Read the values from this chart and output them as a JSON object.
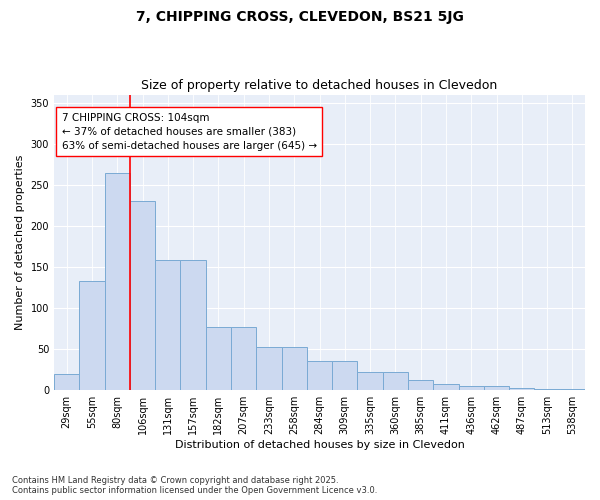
{
  "title": "7, CHIPPING CROSS, CLEVEDON, BS21 5JG",
  "subtitle": "Size of property relative to detached houses in Clevedon",
  "xlabel": "Distribution of detached houses by size in Clevedon",
  "ylabel": "Number of detached properties",
  "categories": [
    "29sqm",
    "55sqm",
    "80sqm",
    "106sqm",
    "131sqm",
    "157sqm",
    "182sqm",
    "207sqm",
    "233sqm",
    "258sqm",
    "284sqm",
    "309sqm",
    "335sqm",
    "360sqm",
    "385sqm",
    "411sqm",
    "436sqm",
    "462sqm",
    "487sqm",
    "513sqm",
    "538sqm"
  ],
  "bar_values": [
    20,
    133,
    265,
    230,
    158,
    158,
    77,
    77,
    53,
    53,
    35,
    35,
    22,
    22,
    13,
    7,
    5,
    5,
    3,
    2,
    1
  ],
  "bar_color": "#ccd9f0",
  "bar_edge_color": "#7aaad4",
  "vline_color": "red",
  "vline_pos": 3.0,
  "annotation_text": "7 CHIPPING CROSS: 104sqm\n← 37% of detached houses are smaller (383)\n63% of semi-detached houses are larger (645) →",
  "annotation_box_color": "white",
  "annotation_box_edge": "red",
  "ylim": [
    0,
    360
  ],
  "yticks": [
    0,
    50,
    100,
    150,
    200,
    250,
    300,
    350
  ],
  "footer": "Contains HM Land Registry data © Crown copyright and database right 2025.\nContains public sector information licensed under the Open Government Licence v3.0.",
  "bg_color": "#e8eef8",
  "title_fontsize": 10,
  "subtitle_fontsize": 9,
  "axis_label_fontsize": 8,
  "tick_fontsize": 7,
  "annotation_fontsize": 7.5,
  "figwidth": 6.0,
  "figheight": 5.0,
  "dpi": 100
}
